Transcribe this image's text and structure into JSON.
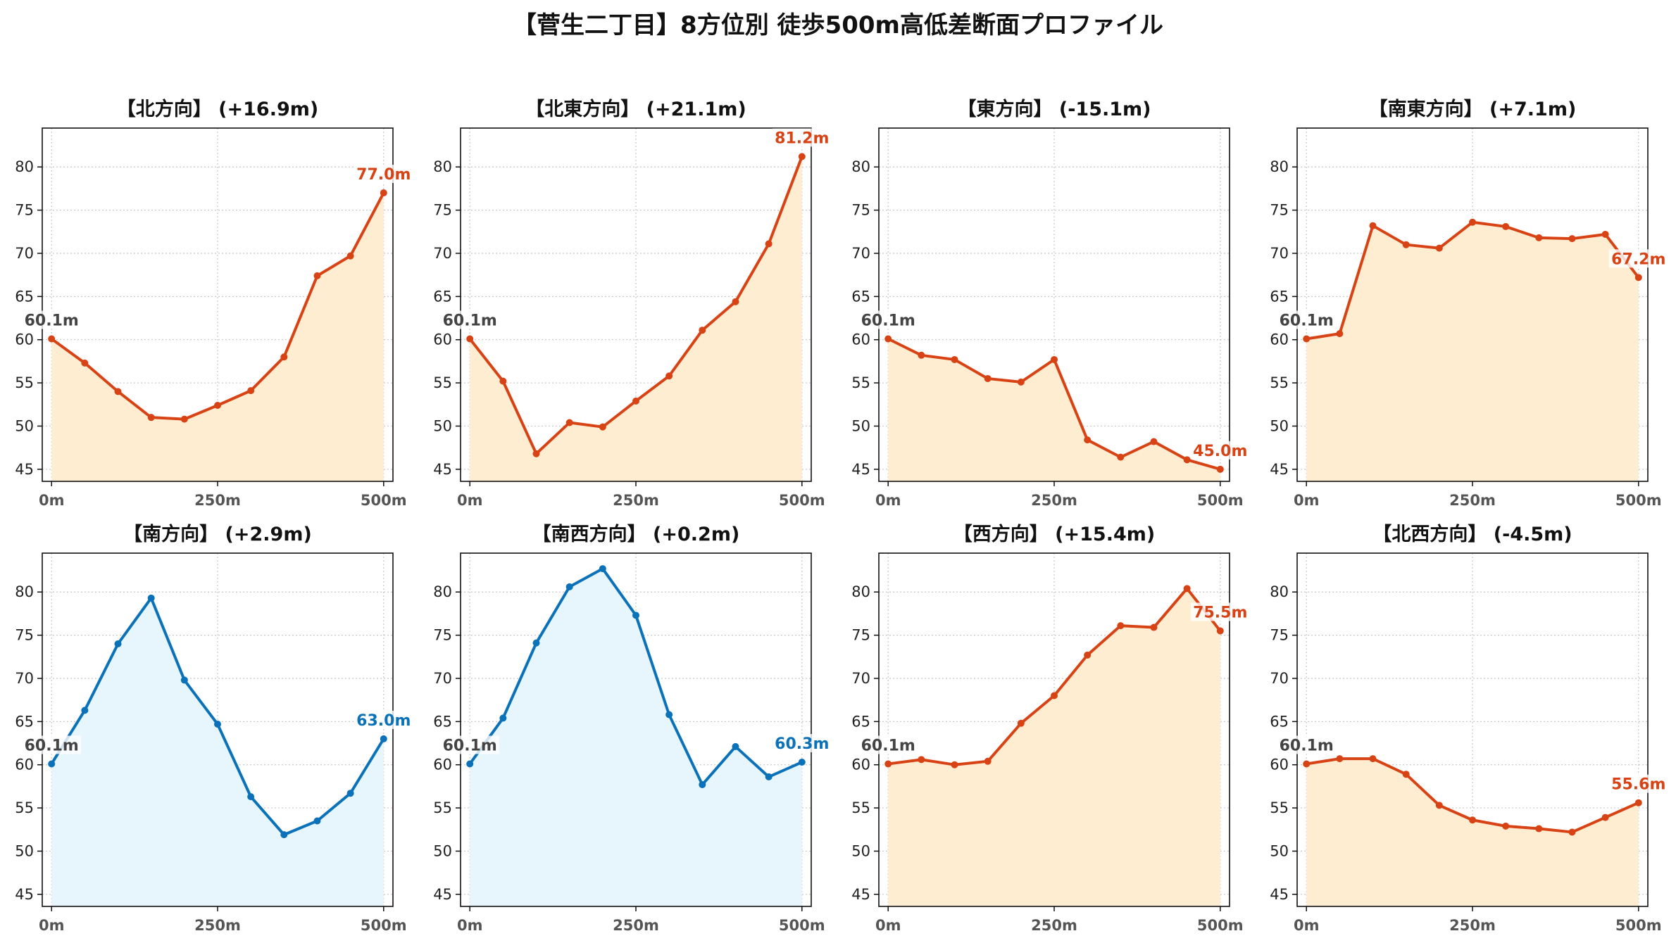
{
  "title": "【菅生二丁目】8方位別 徒歩500m高低差断面プロファイル",
  "colors": {
    "up_line": "#d84315",
    "up_fill": "#ffedd1",
    "down_line": "#0b72b9",
    "down_fill": "#e7f5fc",
    "start_label": "#444444",
    "grid": "#c8c8c8"
  },
  "chart_data": [
    {
      "type": "area",
      "title": "【北方向】 (+16.9m)",
      "trend": "up",
      "x": [
        0,
        50,
        100,
        150,
        200,
        250,
        300,
        350,
        400,
        450,
        500
      ],
      "y": [
        60.1,
        57.3,
        54.0,
        51.0,
        50.8,
        52.4,
        54.1,
        58.0,
        67.4,
        69.7,
        77.0
      ],
      "start_label": "60.1m",
      "end_label": "77.0m",
      "xticks": [
        "0m",
        "250m",
        "500m"
      ],
      "yticks": [
        45,
        50,
        55,
        60,
        65,
        70,
        75,
        80
      ],
      "ylim": [
        43.6,
        84.5
      ],
      "xlim": [
        -14,
        514
      ],
      "grid": true
    },
    {
      "type": "area",
      "title": "【北東方向】 (+21.1m)",
      "trend": "up",
      "x": [
        0,
        50,
        100,
        150,
        200,
        250,
        300,
        350,
        400,
        450,
        500
      ],
      "y": [
        60.1,
        55.2,
        46.8,
        50.4,
        49.9,
        52.9,
        55.8,
        61.1,
        64.4,
        71.1,
        81.2
      ],
      "start_label": "60.1m",
      "end_label": "81.2m",
      "xticks": [
        "0m",
        "250m",
        "500m"
      ],
      "yticks": [
        45,
        50,
        55,
        60,
        65,
        70,
        75,
        80
      ],
      "ylim": [
        43.6,
        84.5
      ],
      "xlim": [
        -14,
        514
      ],
      "grid": true
    },
    {
      "type": "area",
      "title": "【東方向】 (-15.1m)",
      "trend": "up",
      "x": [
        0,
        50,
        100,
        150,
        200,
        250,
        300,
        350,
        400,
        450,
        500
      ],
      "y": [
        60.1,
        58.2,
        57.7,
        55.5,
        55.1,
        57.7,
        48.4,
        46.4,
        48.2,
        46.1,
        45.0
      ],
      "start_label": "60.1m",
      "end_label": "45.0m",
      "xticks": [
        "0m",
        "250m",
        "500m"
      ],
      "yticks": [
        45,
        50,
        55,
        60,
        65,
        70,
        75,
        80
      ],
      "ylim": [
        43.6,
        84.5
      ],
      "xlim": [
        -14,
        514
      ],
      "grid": true
    },
    {
      "type": "area",
      "title": "【南東方向】 (+7.1m)",
      "trend": "up",
      "x": [
        0,
        50,
        100,
        150,
        200,
        250,
        300,
        350,
        400,
        450,
        500
      ],
      "y": [
        60.1,
        60.7,
        73.2,
        71.0,
        70.6,
        73.6,
        73.1,
        71.8,
        71.7,
        72.2,
        67.2
      ],
      "start_label": "60.1m",
      "end_label": "67.2m",
      "xticks": [
        "0m",
        "250m",
        "500m"
      ],
      "yticks": [
        45,
        50,
        55,
        60,
        65,
        70,
        75,
        80
      ],
      "ylim": [
        43.6,
        84.5
      ],
      "xlim": [
        -14,
        514
      ],
      "grid": true
    },
    {
      "type": "area",
      "title": "【南方向】 (+2.9m)",
      "trend": "down",
      "x": [
        0,
        50,
        100,
        150,
        200,
        250,
        300,
        350,
        400,
        450,
        500
      ],
      "y": [
        60.1,
        66.3,
        74.0,
        79.3,
        69.8,
        64.7,
        56.3,
        51.9,
        53.5,
        56.7,
        63.0
      ],
      "start_label": "60.1m",
      "end_label": "63.0m",
      "xticks": [
        "0m",
        "250m",
        "500m"
      ],
      "yticks": [
        45,
        50,
        55,
        60,
        65,
        70,
        75,
        80
      ],
      "ylim": [
        43.6,
        84.5
      ],
      "xlim": [
        -14,
        514
      ],
      "grid": true
    },
    {
      "type": "area",
      "title": "【南西方向】 (+0.2m)",
      "trend": "down",
      "x": [
        0,
        50,
        100,
        150,
        200,
        250,
        300,
        350,
        400,
        450,
        500
      ],
      "y": [
        60.1,
        65.4,
        74.1,
        80.6,
        82.7,
        77.3,
        65.8,
        57.7,
        62.1,
        58.6,
        60.3
      ],
      "start_label": "60.1m",
      "end_label": "60.3m",
      "xticks": [
        "0m",
        "250m",
        "500m"
      ],
      "yticks": [
        45,
        50,
        55,
        60,
        65,
        70,
        75,
        80
      ],
      "ylim": [
        43.6,
        84.5
      ],
      "xlim": [
        -14,
        514
      ],
      "grid": true
    },
    {
      "type": "area",
      "title": "【西方向】 (+15.4m)",
      "trend": "up",
      "x": [
        0,
        50,
        100,
        150,
        200,
        250,
        300,
        350,
        400,
        450,
        500
      ],
      "y": [
        60.1,
        60.6,
        60.0,
        60.4,
        64.8,
        68.0,
        72.7,
        76.1,
        75.9,
        80.4,
        75.5
      ],
      "start_label": "60.1m",
      "end_label": "75.5m",
      "xticks": [
        "0m",
        "250m",
        "500m"
      ],
      "yticks": [
        45,
        50,
        55,
        60,
        65,
        70,
        75,
        80
      ],
      "ylim": [
        43.6,
        84.5
      ],
      "xlim": [
        -14,
        514
      ],
      "grid": true
    },
    {
      "type": "area",
      "title": "【北西方向】 (-4.5m)",
      "trend": "up",
      "x": [
        0,
        50,
        100,
        150,
        200,
        250,
        300,
        350,
        400,
        450,
        500
      ],
      "y": [
        60.1,
        60.7,
        60.7,
        58.9,
        55.3,
        53.6,
        52.9,
        52.6,
        52.2,
        53.9,
        55.6
      ],
      "start_label": "60.1m",
      "end_label": "55.6m",
      "xticks": [
        "0m",
        "250m",
        "500m"
      ],
      "yticks": [
        45,
        50,
        55,
        60,
        65,
        70,
        75,
        80
      ],
      "ylim": [
        43.6,
        84.5
      ],
      "xlim": [
        -14,
        514
      ],
      "grid": true
    }
  ]
}
